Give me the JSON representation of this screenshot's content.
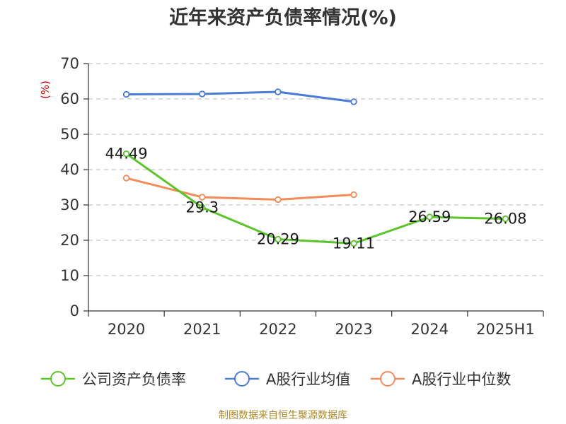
{
  "chart_data": {
    "type": "line",
    "title": "近年来资产负债率情况(%)",
    "ylabel": "(%)",
    "xlabel": "",
    "categories": [
      "2020",
      "2021",
      "2022",
      "2023",
      "2024",
      "2025H1"
    ],
    "ylim": [
      0,
      70
    ],
    "yticks": [
      "0",
      "10",
      "20",
      "30",
      "40",
      "50",
      "60",
      "70"
    ],
    "grid": true,
    "legend_position": "bottom",
    "series": [
      {
        "name": "公司资产负债率",
        "color": "#5cc42b",
        "values": [
          44.49,
          29.3,
          20.29,
          19.11,
          26.59,
          26.08
        ],
        "labels": [
          "44.49",
          "29.3",
          "20.29",
          "19.11",
          "26.59",
          "26.08"
        ]
      },
      {
        "name": "A股行业均值",
        "color": "#4a7bd6",
        "values": [
          61.3,
          61.4,
          62.0,
          59.2,
          null,
          null
        ]
      },
      {
        "name": "A股行业中位数",
        "color": "#f28c5a",
        "values": [
          37.6,
          32.2,
          31.5,
          32.9,
          null,
          null
        ]
      }
    ]
  },
  "footer": {
    "source": "制图数据来自恒生聚源数据库"
  }
}
